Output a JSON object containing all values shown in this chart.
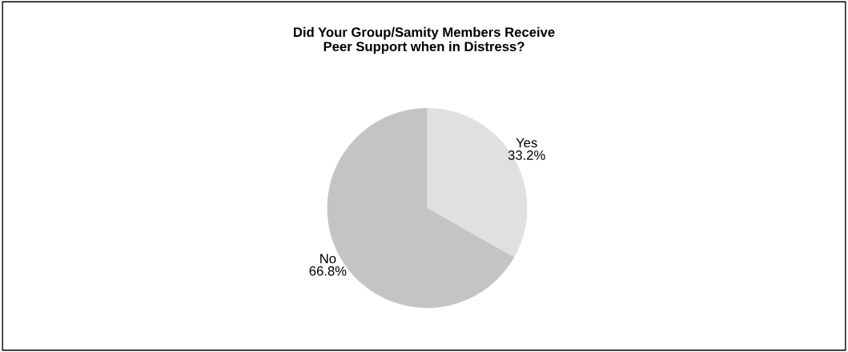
{
  "chart_data": {
    "type": "pie",
    "title": "Did Your Group/Samity Members Receive\nPeer Support when in Distress?",
    "categories": [
      "Yes",
      "No"
    ],
    "values": [
      33.2,
      66.8
    ],
    "colors": [
      "#e0e0e0",
      "#c4c4c4"
    ],
    "value_labels": [
      "33.2%",
      "66.8%"
    ],
    "legend": false
  }
}
